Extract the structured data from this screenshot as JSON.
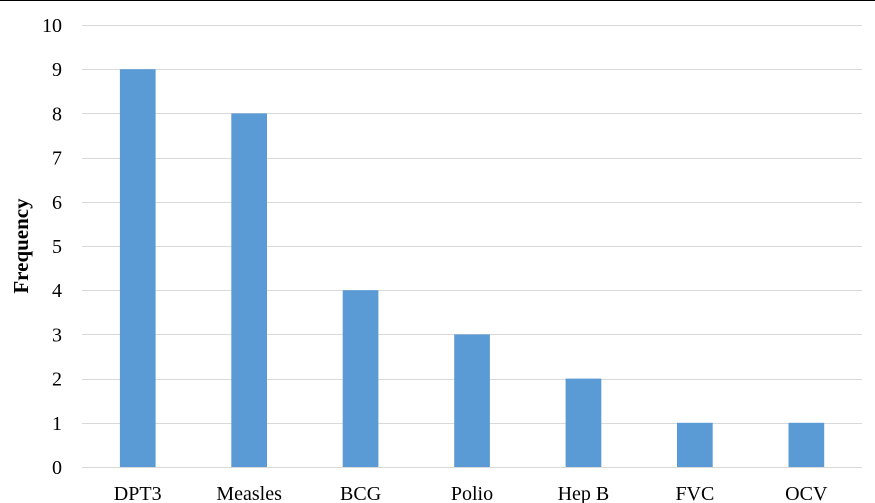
{
  "chart_data": {
    "type": "bar",
    "title": "",
    "xlabel": "",
    "ylabel": "Frequency",
    "categories": [
      "DPT3",
      "Measles",
      "BCG",
      "Polio",
      "Hep B",
      "FVC",
      "OCV"
    ],
    "values": [
      9,
      8,
      4,
      3,
      2,
      1,
      1
    ],
    "ylim": [
      0,
      10
    ],
    "yticks": [
      "0",
      "1",
      "2",
      "3",
      "4",
      "5",
      "6",
      "7",
      "8",
      "9",
      "10"
    ],
    "grid": true,
    "legend": "none",
    "bar_color": "#5b9bd5",
    "grid_color": "#d9d9d9",
    "axis_line_color": "#d9d9d9",
    "border_color": "#000000"
  }
}
